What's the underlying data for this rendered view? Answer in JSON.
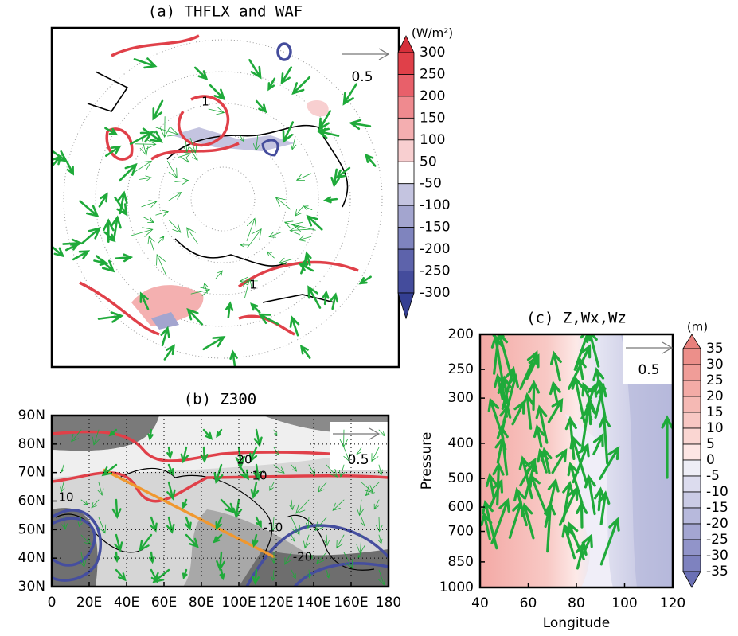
{
  "chart_data": [
    {
      "type": "map",
      "title": "(a) THFLX and WAF",
      "ref_vector": 0.5,
      "contour_labels": [
        "1",
        "1"
      ],
      "colorbar": {
        "unit": "(W/m²)",
        "ticks": [
          300,
          250,
          200,
          150,
          100,
          50,
          -50,
          -100,
          -150,
          -200,
          -250,
          -300
        ],
        "colors": [
          "#d62f3a",
          "#e04049",
          "#e8606a",
          "#ef8a8f",
          "#f4aeb0",
          "#f8cfd0",
          "#ffffff",
          "#c4c4e0",
          "#a3a5cf",
          "#7f84be",
          "#5d63ab",
          "#444c9c",
          "#343f92"
        ]
      }
    },
    {
      "type": "map",
      "title": "(b) Z300",
      "ref_vector": 0.5,
      "contour_labels": [
        "20",
        "10",
        "10",
        "-10",
        "-20"
      ],
      "xlim": [
        0,
        180
      ],
      "xticks": [
        {
          "value": 0,
          "label": "0"
        },
        {
          "value": 20,
          "label": "20E"
        },
        {
          "value": 40,
          "label": "40E"
        },
        {
          "value": 60,
          "label": "60E"
        },
        {
          "value": 80,
          "label": "80E"
        },
        {
          "value": 100,
          "label": "100E"
        },
        {
          "value": 120,
          "label": "120E"
        },
        {
          "value": 140,
          "label": "140E"
        },
        {
          "value": 160,
          "label": "160E"
        },
        {
          "value": 180,
          "label": "180"
        }
      ],
      "ylim": [
        30,
        90
      ],
      "yticks": [
        {
          "value": 30,
          "label": "30N"
        },
        {
          "value": 40,
          "label": "40N"
        },
        {
          "value": 50,
          "label": "50N"
        },
        {
          "value": 60,
          "label": "60N"
        },
        {
          "value": 70,
          "label": "70N"
        },
        {
          "value": 80,
          "label": "80N"
        },
        {
          "value": 90,
          "label": "90N"
        }
      ]
    },
    {
      "type": "contour",
      "title": "(c) Z,Wx,Wz",
      "ref_vector": 0.5,
      "xlabel": "Longitude",
      "ylabel": "Pressure",
      "log_y": true,
      "xlim": [
        40,
        120
      ],
      "xticks": [
        40,
        60,
        80,
        100,
        120
      ],
      "ylim": [
        1000,
        200
      ],
      "yticks": [
        200,
        250,
        300,
        400,
        500,
        600,
        700,
        850,
        1000
      ],
      "colorbar": {
        "unit": "(m)",
        "ticks": [
          35,
          30,
          25,
          20,
          15,
          10,
          5,
          0,
          -5,
          -10,
          -15,
          -20,
          -25,
          -30,
          -35
        ],
        "colors": [
          "#e8807c",
          "#ec8f8a",
          "#f09d98",
          "#f3aba6",
          "#f5b9b4",
          "#f8c7c3",
          "#fad6d2",
          "#fde6e4",
          "#eeeef6",
          "#dcdcee",
          "#cacbe5",
          "#b7b9dc",
          "#a4a6d2",
          "#9194c9",
          "#7e82bf",
          "#6b70b5"
        ]
      }
    }
  ]
}
